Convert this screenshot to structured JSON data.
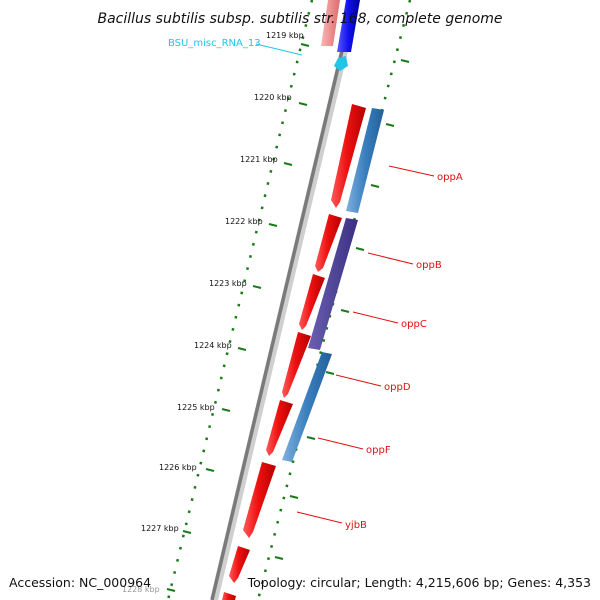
{
  "title": "Bacillus subtilis subsp. subtilis str. 168, complete genome",
  "footer": {
    "accession": "Accession: NC_000964",
    "topology": "Topology: circular; Length: 4,215,606 bp; Genes: 4,353"
  },
  "ruler": {
    "ticks": [
      "1219 kbp",
      "1220 kbp",
      "1221 kbp",
      "1222 kbp",
      "1223 kbp",
      "1224 kbp",
      "1225 kbp",
      "1226 kbp",
      "1227 kbp",
      "1228 kbp"
    ]
  },
  "genes": [
    {
      "label": "BSU_misc_RNA_13",
      "color": "#22c4e8"
    },
    {
      "label": "oppA",
      "color": "#dd1111"
    },
    {
      "label": "oppB",
      "color": "#dd1111"
    },
    {
      "label": "oppC",
      "color": "#dd1111"
    },
    {
      "label": "oppD",
      "color": "#dd1111"
    },
    {
      "label": "oppF",
      "color": "#dd1111"
    },
    {
      "label": "yjbB",
      "color": "#dd1111"
    }
  ],
  "colors": {
    "forward_strand": "#ee1111",
    "reverse_strand": "#1010ee",
    "operon": "#3a7fbf",
    "misc_rna": "#22c4e8",
    "tick": "#1a7a1a"
  }
}
